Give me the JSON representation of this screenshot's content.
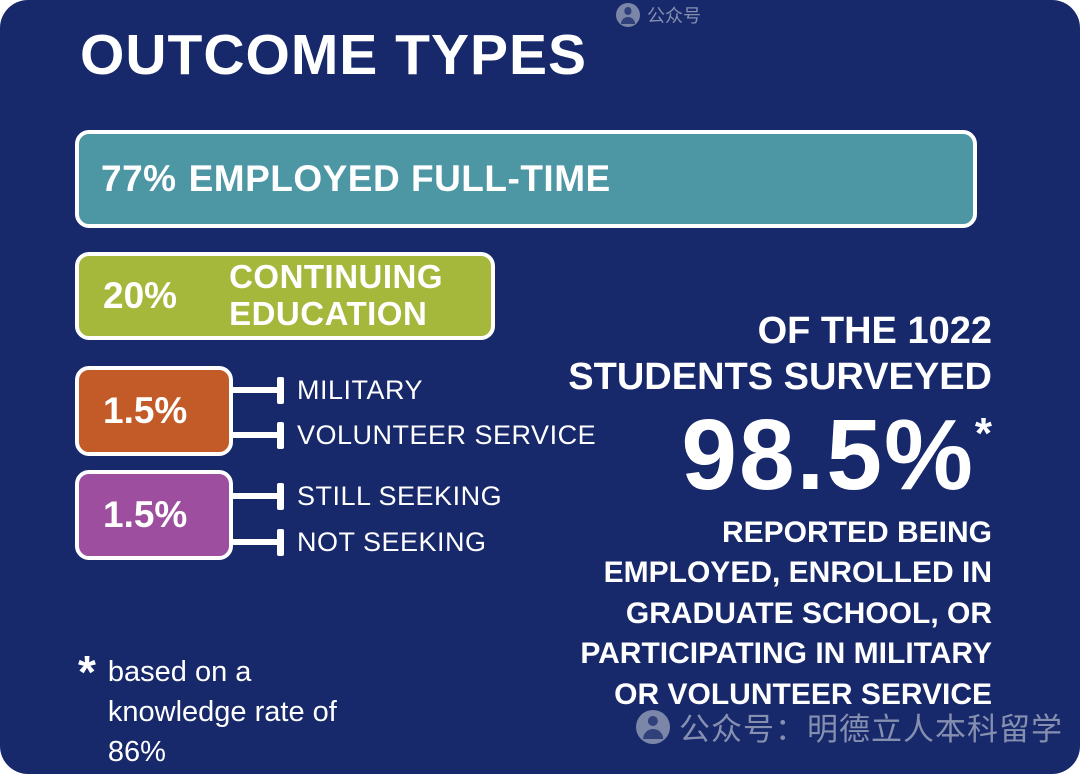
{
  "header": {
    "title": "OUTCOME TYPES"
  },
  "bars": [
    {
      "percent": "77%",
      "label": "EMPLOYED FULL-TIME",
      "color": "#4D97A5"
    },
    {
      "percent": "20%",
      "label": "CONTINUING EDUCATION",
      "color": "#A6B83B"
    },
    {
      "percent": "1.5%",
      "color": "#C25B28",
      "callouts": [
        "MILITARY",
        "VOLUNTEER SERVICE"
      ]
    },
    {
      "percent": "1.5%",
      "color": "#9D4E9E",
      "callouts": [
        "STILL SEEKING",
        "NOT SEEKING"
      ]
    }
  ],
  "stat": {
    "intro_line1": "OF THE 1022",
    "intro_line2": "STUDENTS SURVEYED",
    "value": "98.5%",
    "asterisk": "*",
    "description_lines": [
      "REPORTED BEING",
      "EMPLOYED, ENROLLED IN",
      "GRADUATE SCHOOL, OR",
      "PARTICIPATING IN MILITARY",
      "OR VOLUNTEER SERVICE"
    ]
  },
  "footnote": {
    "asterisk": "*",
    "lines": [
      "based on a",
      "knowledge rate of",
      "86%"
    ]
  },
  "watermarks": {
    "top": "公众号",
    "bottom": "公众号：明德立人本科留学"
  },
  "colors": {
    "background": "#17286B",
    "employed_full_time": "#4D97A5",
    "continuing_education": "#A6B83B",
    "military_volunteer": "#C25B28",
    "seeking": "#9D4E9E",
    "text": "#FFFFFF"
  },
  "chart_data": {
    "type": "bar",
    "orientation": "horizontal",
    "title": "OUTCOME TYPES",
    "categories": [
      "EMPLOYED FULL-TIME",
      "CONTINUING EDUCATION",
      "MILITARY / VOLUNTEER SERVICE",
      "STILL SEEKING / NOT SEEKING"
    ],
    "values": [
      77,
      20,
      1.5,
      1.5
    ],
    "unit": "%",
    "colors": [
      "#4D97A5",
      "#A6B83B",
      "#C25B28",
      "#9D4E9E"
    ],
    "annotations": [
      "OF THE 1022 STUDENTS SURVEYED 98.5%* REPORTED BEING EMPLOYED, ENROLLED IN GRADUATE SCHOOL, OR PARTICIPATING IN MILITARY OR VOLUNTEER SERVICE",
      "* based on a knowledge rate of 86%"
    ],
    "legend": false,
    "grid": false
  }
}
